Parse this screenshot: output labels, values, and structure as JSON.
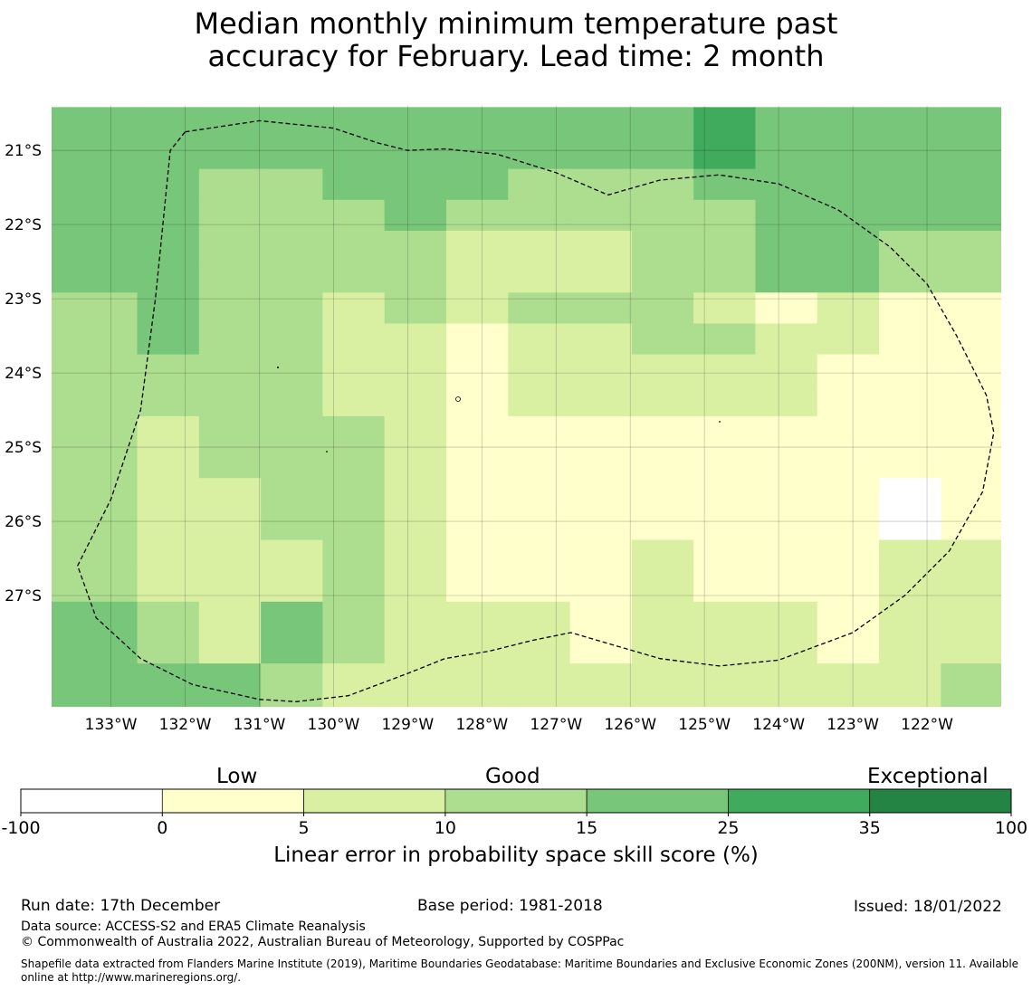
{
  "chart_data": {
    "type": "heatmap",
    "title_lines": [
      "Median monthly minimum temperature past",
      "accuracy for February. Lead time: 2 month"
    ],
    "x_ticks": [
      "133°W",
      "132°W",
      "131°W",
      "130°W",
      "129°W",
      "128°W",
      "127°W",
      "126°W",
      "125°W",
      "124°W",
      "123°W",
      "122°W"
    ],
    "y_ticks": [
      "21°S",
      "22°S",
      "23°S",
      "24°S",
      "25°S",
      "26°S",
      "27°S"
    ],
    "lon_range": [
      -133.8,
      -121.0
    ],
    "lat_range": [
      -28.5,
      -20.4
    ],
    "cell_size_deg": 0.8333,
    "grid_origin": {
      "lon_west": -133.48,
      "lat_north": -20.42
    },
    "grid_note": "values grid rows run north to south, columns west to east; values are skill-class indices 0-6 (see colorbar.bounds); cells west of grid_origin use the first column",
    "values": [
      [
        4,
        4,
        4,
        4,
        4,
        4,
        4,
        4,
        4,
        4,
        5,
        4,
        4,
        4,
        4,
        4,
        5,
        5,
        5,
        4,
        5
      ],
      [
        4,
        4,
        4,
        4,
        4,
        4,
        4,
        4,
        4,
        4,
        5,
        4,
        4,
        4,
        4,
        4,
        5,
        5,
        5,
        4,
        5
      ],
      [
        4,
        4,
        3,
        3,
        4,
        4,
        4,
        3,
        3,
        3,
        4,
        4,
        4,
        4,
        4,
        4,
        5,
        5,
        5,
        4,
        5
      ],
      [
        4,
        4,
        3,
        3,
        3,
        4,
        3,
        3,
        3,
        3,
        3,
        4,
        4,
        4,
        4,
        4,
        5,
        5,
        5,
        4,
        5
      ],
      [
        4,
        4,
        3,
        3,
        3,
        3,
        2,
        2,
        2,
        3,
        3,
        4,
        4,
        3,
        3,
        1,
        4,
        4,
        4,
        4,
        4
      ],
      [
        4,
        4,
        3,
        3,
        3,
        3,
        2,
        2,
        2,
        3,
        3,
        4,
        4,
        3,
        3,
        1,
        4,
        4,
        4,
        4,
        4
      ],
      [
        3,
        4,
        3,
        3,
        2,
        3,
        2,
        3,
        3,
        3,
        2,
        1,
        2,
        1,
        1,
        1,
        1,
        1,
        3,
        3,
        3
      ],
      [
        3,
        4,
        3,
        3,
        2,
        2,
        1,
        2,
        2,
        3,
        3,
        2,
        2,
        1,
        1,
        1,
        1,
        1,
        3,
        3,
        3
      ],
      [
        3,
        3,
        3,
        3,
        2,
        2,
        1,
        2,
        2,
        2,
        2,
        2,
        1,
        1,
        1,
        0,
        0,
        0,
        2,
        2,
        2
      ],
      [
        3,
        3,
        3,
        3,
        2,
        2,
        1,
        2,
        2,
        2,
        2,
        2,
        1,
        1,
        1,
        0,
        0,
        0,
        2,
        2,
        2
      ],
      [
        3,
        2,
        3,
        3,
        3,
        2,
        1,
        1,
        1,
        1,
        1,
        1,
        1,
        1,
        1,
        2,
        2,
        2,
        0,
        0,
        0
      ],
      [
        3,
        2,
        3,
        3,
        3,
        2,
        1,
        1,
        1,
        1,
        1,
        1,
        1,
        1,
        1,
        2,
        2,
        2,
        0,
        0,
        0
      ],
      [
        3,
        2,
        2,
        3,
        3,
        2,
        1,
        1,
        1,
        1,
        1,
        1,
        1,
        0,
        1,
        1,
        1,
        1,
        0,
        0,
        0
      ],
      [
        3,
        2,
        2,
        3,
        3,
        2,
        1,
        1,
        1,
        1,
        1,
        1,
        1,
        0,
        1,
        1,
        1,
        1,
        0,
        0,
        0
      ],
      [
        3,
        2,
        2,
        2,
        3,
        2,
        1,
        1,
        1,
        2,
        1,
        1,
        1,
        2,
        2,
        2,
        1,
        1,
        1,
        1,
        0
      ],
      [
        3,
        2,
        2,
        2,
        3,
        2,
        1,
        1,
        1,
        2,
        1,
        1,
        1,
        2,
        2,
        2,
        1,
        1,
        1,
        1,
        0
      ],
      [
        4,
        3,
        2,
        4,
        3,
        2,
        2,
        2,
        1,
        2,
        2,
        2,
        1,
        2,
        2,
        2,
        2,
        2,
        3,
        3,
        2
      ],
      [
        4,
        3,
        2,
        4,
        3,
        2,
        2,
        2,
        1,
        2,
        2,
        2,
        1,
        2,
        2,
        2,
        2,
        2,
        3,
        3,
        2
      ],
      [
        4,
        4,
        4,
        3,
        2,
        2,
        2,
        2,
        2,
        2,
        2,
        2,
        2,
        2,
        3,
        3,
        2,
        2,
        3,
        3,
        3
      ],
      [
        4,
        4,
        4,
        3,
        2,
        2,
        2,
        2,
        2,
        2,
        2,
        2,
        2,
        2,
        3,
        3,
        2,
        2,
        3,
        3,
        3
      ],
      [
        4,
        4,
        4,
        3,
        2,
        3,
        3,
        2,
        2,
        2,
        2,
        2,
        2,
        2,
        3,
        3,
        3,
        2,
        3,
        3,
        3
      ],
      [
        4,
        4,
        4,
        3,
        2,
        3,
        3,
        2,
        2,
        2,
        2,
        2,
        2,
        2,
        3,
        3,
        3,
        2,
        3,
        3,
        3
      ],
      [
        4,
        4,
        4,
        4,
        3,
        3,
        3,
        3,
        3,
        3,
        4,
        2,
        2,
        3,
        3,
        3,
        3,
        2,
        3,
        3,
        3
      ],
      [
        4,
        4,
        4,
        4,
        3,
        3,
        3,
        3,
        3,
        3,
        4,
        2,
        2,
        3,
        3,
        3,
        3,
        2,
        3,
        3,
        3
      ],
      [
        4,
        4,
        4,
        4,
        4,
        3,
        3,
        3,
        4,
        4,
        4,
        4,
        2,
        2,
        3,
        3,
        3,
        3,
        2,
        2,
        2
      ],
      [
        4,
        4,
        4,
        4,
        4,
        3,
        3,
        3,
        4,
        4,
        4,
        4,
        2,
        2,
        3,
        3,
        3,
        3,
        2,
        2,
        2
      ],
      [
        4,
        4,
        5,
        4,
        4,
        4,
        4,
        4,
        4,
        4,
        4,
        4,
        4,
        4,
        4,
        3,
        3,
        2,
        3,
        3,
        2
      ],
      [
        4,
        4,
        5,
        4,
        4,
        4,
        4,
        4,
        4,
        4,
        4,
        4,
        4,
        4,
        4,
        3,
        3,
        2,
        3,
        3,
        2
      ],
      [
        4,
        5,
        4,
        4,
        4,
        4,
        4,
        4,
        4,
        4,
        4,
        4,
        4,
        4,
        4,
        3,
        3,
        3,
        3,
        3,
        2
      ],
      [
        4,
        5,
        4,
        4,
        4,
        4,
        4,
        4,
        4,
        4,
        4,
        4,
        4,
        4,
        4,
        3,
        3,
        3,
        3,
        3,
        2
      ]
    ],
    "boundary": [
      [
        -132.0,
        -20.75
      ],
      [
        -131.0,
        -20.6
      ],
      [
        -130.0,
        -20.7
      ],
      [
        -129.4,
        -20.9
      ],
      [
        -129.0,
        -21.0
      ],
      [
        -128.5,
        -20.98
      ],
      [
        -127.8,
        -21.05
      ],
      [
        -127.0,
        -21.3
      ],
      [
        -126.3,
        -21.6
      ],
      [
        -125.6,
        -21.4
      ],
      [
        -124.8,
        -21.33
      ],
      [
        -124.0,
        -21.45
      ],
      [
        -123.2,
        -21.8
      ],
      [
        -122.5,
        -22.3
      ],
      [
        -122.0,
        -22.8
      ],
      [
        -121.6,
        -23.5
      ],
      [
        -121.2,
        -24.3
      ],
      [
        -121.1,
        -24.8
      ],
      [
        -121.25,
        -25.6
      ],
      [
        -121.7,
        -26.4
      ],
      [
        -122.3,
        -27.0
      ],
      [
        -123.0,
        -27.5
      ],
      [
        -124.0,
        -27.87
      ],
      [
        -124.8,
        -27.95
      ],
      [
        -125.6,
        -27.85
      ],
      [
        -126.8,
        -27.5
      ],
      [
        -127.3,
        -27.6
      ],
      [
        -127.9,
        -27.75
      ],
      [
        -128.5,
        -27.85
      ],
      [
        -129.0,
        -28.05
      ],
      [
        -129.8,
        -28.35
      ],
      [
        -130.5,
        -28.43
      ],
      [
        -131.0,
        -28.4
      ],
      [
        -131.9,
        -28.2
      ],
      [
        -132.6,
        -27.85
      ],
      [
        -133.2,
        -27.3
      ],
      [
        -133.45,
        -26.6
      ],
      [
        -133.0,
        -25.7
      ],
      [
        -132.6,
        -24.5
      ],
      [
        -132.4,
        -23.0
      ],
      [
        -132.2,
        -21.0
      ],
      [
        -132.0,
        -20.75
      ]
    ]
  },
  "colorbar": {
    "bounds": [
      "-100",
      "0",
      "5",
      "10",
      "15",
      "25",
      "35",
      "100"
    ],
    "colors": [
      "#ffffff",
      "#ffffcc",
      "#d9f0a3",
      "#addd8e",
      "#78c679",
      "#41ab5d",
      "#238443"
    ],
    "category_labels": [
      "Low",
      "Good",
      "Exceptional"
    ],
    "title": "Linear error in probability space skill score (%)"
  },
  "footer": {
    "run_date": "Run date: 17th December",
    "base_period": "Base period: 1981-2018",
    "issued": "Issued: 18/01/2022",
    "data_source": "Data source: ACCESS-S2 and ERA5 Climate Reanalysis",
    "copyright": "© Commonwealth of Australia 2022, Australian Bureau of Meteorology, Supported by COSPPac",
    "shapefile_note": "Shapefile data extracted from Flanders Marine Institute (2019), Maritime Boundaries Geodatabase: Maritime Boundaries and Exclusive Economic Zones (200NM), version 11. Available online at http://www.marineregions.org/."
  }
}
